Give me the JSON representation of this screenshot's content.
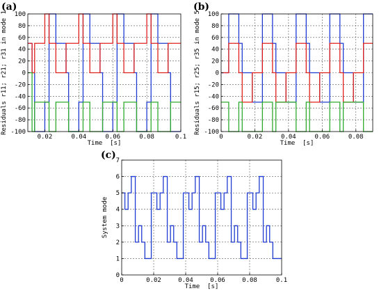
{
  "chart_data": [
    {
      "letter": "(a)",
      "type": "line",
      "step": true,
      "xlabel": "Time  [s]",
      "ylabel": "Residuals r11; r21; r31 in mode 1",
      "xlim": [
        0.01,
        0.1
      ],
      "ylim": [
        -100,
        100
      ],
      "xticks": [
        0.02,
        0.04,
        0.06,
        0.08,
        0.1
      ],
      "xtick_labels": [
        "0.02",
        "0.04",
        "0.06",
        "0.08",
        "0.1"
      ],
      "yticks": [
        -100,
        -80,
        -60,
        -40,
        -20,
        0,
        20,
        40,
        60,
        80,
        100
      ],
      "grid": true,
      "series": [
        {
          "color": "#1f3bd1",
          "x": [
            0.01,
            0.0125,
            0.0125,
            0.014,
            0.014,
            0.02,
            0.02,
            0.0225,
            0.0225,
            0.0265,
            0.0265,
            0.0325,
            0.0325,
            0.034,
            0.034,
            0.04,
            0.04,
            0.0425,
            0.0425,
            0.0465,
            0.0465,
            0.0525,
            0.0525,
            0.054,
            0.054,
            0.06,
            0.06,
            0.0625,
            0.0625,
            0.0665,
            0.0665,
            0.0725,
            0.0725,
            0.074,
            0.074,
            0.08,
            0.08,
            0.0825,
            0.0825,
            0.0865,
            0.0865,
            0.0925,
            0.0925,
            0.094,
            0.094,
            0.1
          ],
          "y": [
            50,
            50,
            0,
            0,
            -100,
            -100,
            -50,
            -50,
            100,
            100,
            50,
            50,
            0,
            0,
            -100,
            -100,
            -50,
            -50,
            100,
            100,
            50,
            50,
            0,
            0,
            -100,
            -100,
            -50,
            -50,
            100,
            100,
            50,
            50,
            0,
            0,
            -100,
            -100,
            -50,
            -50,
            100,
            100,
            50,
            50,
            0,
            0,
            -100,
            -100
          ]
        },
        {
          "color": "#e0201b",
          "x": [
            0.01,
            0.0125,
            0.0125,
            0.014,
            0.014,
            0.02,
            0.02,
            0.0225,
            0.0225,
            0.0265,
            0.0265,
            0.0325,
            0.0325,
            0.034,
            0.034,
            0.04,
            0.04,
            0.0425,
            0.0425,
            0.0465,
            0.0465,
            0.0525,
            0.0525,
            0.054,
            0.054,
            0.06,
            0.06,
            0.0625,
            0.0625,
            0.0665,
            0.0665,
            0.0725,
            0.0725,
            0.074,
            0.074,
            0.08,
            0.08,
            0.0825,
            0.0825,
            0.0865,
            0.0865,
            0.0925,
            0.0925,
            0.094,
            0.094,
            0.1
          ],
          "y": [
            50,
            50,
            0,
            0,
            50,
            50,
            100,
            100,
            50,
            50,
            0,
            0,
            50,
            50,
            50,
            50,
            100,
            100,
            50,
            50,
            0,
            0,
            50,
            50,
            50,
            50,
            100,
            100,
            50,
            50,
            0,
            0,
            50,
            50,
            50,
            50,
            100,
            100,
            50,
            50,
            0,
            0,
            50,
            50,
            50,
            50
          ]
        },
        {
          "color": "#2eab2b",
          "x": [
            0.01,
            0.0125,
            0.0125,
            0.014,
            0.014,
            0.0225,
            0.0225,
            0.0265,
            0.0265,
            0.034,
            0.034,
            0.0425,
            0.0425,
            0.0465,
            0.0465,
            0.054,
            0.054,
            0.0625,
            0.0625,
            0.0665,
            0.0665,
            0.074,
            0.074,
            0.0825,
            0.0825,
            0.0865,
            0.0865,
            0.094,
            0.094,
            0.1
          ],
          "y": [
            0,
            0,
            -100,
            -100,
            -50,
            -50,
            -100,
            -100,
            -50,
            -50,
            -100,
            -100,
            -50,
            -50,
            -100,
            -100,
            -50,
            -50,
            -100,
            -100,
            -50,
            -50,
            -100,
            -100,
            -50,
            -50,
            -100,
            -100,
            -50,
            -50
          ]
        }
      ]
    },
    {
      "letter": "(b)",
      "type": "line",
      "step": true,
      "xlabel": "Time  [s]",
      "ylabel": "Residuals r15; r25; r35 in mode 5",
      "xlim": [
        0,
        0.09
      ],
      "ylim": [
        -100,
        100
      ],
      "xticks": [
        0,
        0.02,
        0.04,
        0.06,
        0.08
      ],
      "xtick_labels": [
        "0",
        "0.02",
        "0.04",
        "0.06",
        "0.08"
      ],
      "yticks": [
        -100,
        -80,
        -60,
        -40,
        -20,
        0,
        20,
        40,
        60,
        80,
        100
      ],
      "grid": true,
      "series": [
        {
          "color": "#1f3bd1",
          "x": [
            0,
            0.0045,
            0.0045,
            0.0105,
            0.0105,
            0.0125,
            0.0125,
            0.0185,
            0.0185,
            0.0245,
            0.0245,
            0.0305,
            0.0305,
            0.0325,
            0.0325,
            0.0385,
            0.0385,
            0.0445,
            0.0445,
            0.0505,
            0.0505,
            0.0525,
            0.0525,
            0.0585,
            0.0585,
            0.0645,
            0.0645,
            0.0705,
            0.0705,
            0.0725,
            0.0725,
            0.0785,
            0.0785,
            0.0845,
            0.0845,
            0.09
          ],
          "y": [
            0,
            0,
            100,
            100,
            50,
            50,
            0,
            0,
            -50,
            -50,
            100,
            100,
            50,
            50,
            0,
            0,
            -50,
            -50,
            100,
            100,
            50,
            50,
            0,
            0,
            -50,
            -50,
            100,
            100,
            50,
            50,
            0,
            0,
            -50,
            -50,
            100,
            100
          ]
        },
        {
          "color": "#e0201b",
          "x": [
            0,
            0.0045,
            0.0045,
            0.0105,
            0.0105,
            0.0125,
            0.0125,
            0.0185,
            0.0185,
            0.0245,
            0.0245,
            0.0305,
            0.0305,
            0.0325,
            0.0325,
            0.0385,
            0.0385,
            0.0445,
            0.0445,
            0.0505,
            0.0505,
            0.0525,
            0.0525,
            0.0585,
            0.0585,
            0.0645,
            0.0645,
            0.0705,
            0.0705,
            0.0725,
            0.0725,
            0.0785,
            0.0785,
            0.0845,
            0.0845,
            0.09
          ],
          "y": [
            0,
            0,
            50,
            50,
            0,
            0,
            -50,
            -50,
            0,
            0,
            50,
            50,
            0,
            0,
            -50,
            -50,
            0,
            0,
            50,
            50,
            0,
            0,
            -50,
            -50,
            0,
            0,
            50,
            50,
            0,
            0,
            -50,
            -50,
            0,
            0,
            50,
            50
          ]
        },
        {
          "color": "#2eab2b",
          "x": [
            0,
            0.0045,
            0.0045,
            0.0105,
            0.0105,
            0.0125,
            0.0125,
            0.0245,
            0.0245,
            0.0305,
            0.0305,
            0.0325,
            0.0325,
            0.0445,
            0.0445,
            0.0505,
            0.0505,
            0.0525,
            0.0525,
            0.0645,
            0.0645,
            0.0705,
            0.0705,
            0.0725,
            0.0725,
            0.0845,
            0.0845,
            0.09
          ],
          "y": [
            -50,
            -50,
            -100,
            -100,
            -50,
            -50,
            -100,
            -100,
            -50,
            -50,
            -100,
            -100,
            -50,
            -50,
            -100,
            -100,
            -50,
            -50,
            -100,
            -100,
            -50,
            -50,
            -100,
            -100,
            -50,
            -50,
            -100,
            -100
          ]
        }
      ]
    },
    {
      "letter": "(c)",
      "type": "line",
      "step": true,
      "xlabel": "Time  [s]",
      "ylabel": "System mode",
      "xlim": [
        0,
        0.1
      ],
      "ylim": [
        0,
        7
      ],
      "xticks": [
        0,
        0.02,
        0.04,
        0.06,
        0.08,
        0.1
      ],
      "xtick_labels": [
        "0",
        "0.02",
        "0.04",
        "0.06",
        "0.08",
        "0.1"
      ],
      "yticks": [
        0,
        1,
        2,
        3,
        4,
        5,
        6,
        7
      ],
      "grid": true,
      "series": [
        {
          "color": "#1f3bd1",
          "x": [
            0,
            0.002,
            0.002,
            0.004,
            0.004,
            0.006,
            0.006,
            0.0085,
            0.0085,
            0.0105,
            0.0105,
            0.0125,
            0.0125,
            0.0145,
            0.0145,
            0.0165,
            0.0165,
            0.0185,
            0.0185,
            0.022,
            0.022,
            0.024,
            0.024,
            0.026,
            0.026,
            0.0285,
            0.0285,
            0.0305,
            0.0305,
            0.0325,
            0.0325,
            0.0345,
            0.0345,
            0.0365,
            0.0365,
            0.0385,
            0.0385,
            0.042,
            0.042,
            0.044,
            0.044,
            0.046,
            0.046,
            0.0485,
            0.0485,
            0.0505,
            0.0505,
            0.0525,
            0.0525,
            0.0545,
            0.0545,
            0.0565,
            0.0565,
            0.0585,
            0.0585,
            0.062,
            0.062,
            0.064,
            0.064,
            0.066,
            0.066,
            0.0685,
            0.0685,
            0.0705,
            0.0705,
            0.0725,
            0.0725,
            0.0745,
            0.0745,
            0.0765,
            0.0765,
            0.0785,
            0.0785,
            0.082,
            0.082,
            0.084,
            0.084,
            0.086,
            0.086,
            0.0885,
            0.0885,
            0.0905,
            0.0905,
            0.0925,
            0.0925,
            0.0945,
            0.0945,
            0.0965,
            0.0965,
            0.0985,
            0.0985,
            0.1
          ],
          "y": [
            5,
            5,
            4,
            4,
            5,
            5,
            6,
            6,
            2,
            2,
            3,
            3,
            2,
            2,
            1,
            1,
            1,
            1,
            5,
            5,
            4,
            4,
            5,
            5,
            6,
            6,
            2,
            2,
            3,
            3,
            2,
            2,
            1,
            1,
            1,
            1,
            5,
            5,
            4,
            4,
            5,
            5,
            6,
            6,
            2,
            2,
            3,
            3,
            2,
            2,
            1,
            1,
            1,
            1,
            5,
            5,
            4,
            4,
            5,
            5,
            6,
            6,
            2,
            2,
            3,
            3,
            2,
            2,
            1,
            1,
            1,
            1,
            5,
            5,
            4,
            4,
            5,
            5,
            6,
            6,
            2,
            2,
            3,
            3,
            2,
            2,
            1,
            1,
            1,
            1,
            1,
            1
          ]
        }
      ]
    }
  ]
}
